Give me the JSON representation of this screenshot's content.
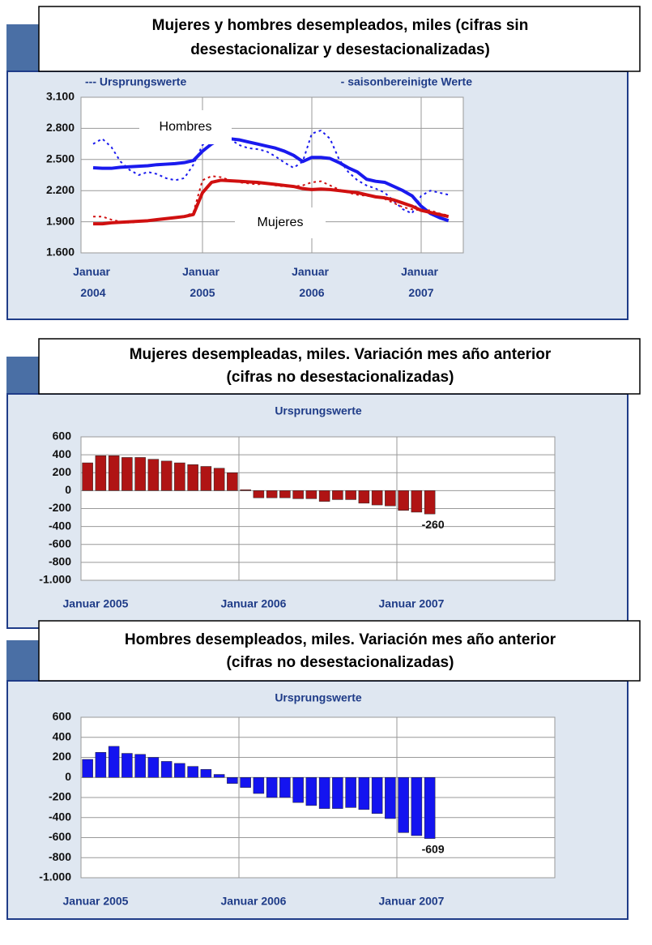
{
  "chart_data": [
    {
      "type": "line",
      "title": [
        "Mujeres y hombres desempleados, miles (cifras sin",
        "desestacionalizar y desestacionalizadas)"
      ],
      "legend": [
        "--- Ursprungswerte",
        "- saisonbereinigte Werte"
      ],
      "annotations": [
        "Hombres",
        "Mujeres"
      ],
      "categories": [
        "Januar 2004",
        null,
        null,
        null,
        null,
        null,
        null,
        null,
        null,
        null,
        null,
        null,
        "Januar 2005",
        null,
        null,
        null,
        null,
        null,
        null,
        null,
        null,
        null,
        null,
        null,
        "Januar 2006",
        null,
        null,
        null,
        null,
        null,
        null,
        null,
        null,
        null,
        null,
        null,
        "Januar 2007",
        null,
        null,
        null
      ],
      "series": [
        {
          "color": "#1a1aee",
          "style": "solid",
          "values": [
            2420,
            2415,
            2415,
            2425,
            2430,
            2435,
            2440,
            2450,
            2455,
            2460,
            2470,
            2490,
            2580,
            2650,
            2700,
            2700,
            2690,
            2670,
            2650,
            2630,
            2610,
            2580,
            2540,
            2480,
            2520,
            2520,
            2510,
            2470,
            2420,
            2380,
            2310,
            2290,
            2280,
            2240,
            2200,
            2150,
            2050,
            1980,
            1940,
            1910
          ]
        },
        {
          "color": "#1a1aee",
          "style": "dotted",
          "values": [
            2650,
            2700,
            2620,
            2480,
            2400,
            2350,
            2380,
            2360,
            2320,
            2300,
            2320,
            2450,
            2640,
            2700,
            2760,
            2700,
            2640,
            2610,
            2600,
            2580,
            2530,
            2470,
            2420,
            2480,
            2750,
            2780,
            2700,
            2500,
            2380,
            2300,
            2250,
            2220,
            2180,
            2100,
            2020,
            1980,
            2150,
            2200,
            2180,
            2160
          ]
        },
        {
          "color": "#d01010",
          "style": "solid",
          "values": [
            1880,
            1880,
            1890,
            1895,
            1900,
            1905,
            1910,
            1920,
            1930,
            1940,
            1950,
            1970,
            2180,
            2280,
            2300,
            2295,
            2290,
            2285,
            2280,
            2270,
            2260,
            2250,
            2240,
            2220,
            2210,
            2215,
            2210,
            2200,
            2190,
            2180,
            2160,
            2140,
            2130,
            2110,
            2080,
            2050,
            2010,
            1990,
            1970,
            1950
          ]
        },
        {
          "color": "#d01010",
          "style": "dotted",
          "values": [
            1950,
            1950,
            1920,
            1900,
            1890,
            1900,
            1910,
            1920,
            1930,
            1940,
            1950,
            1990,
            2300,
            2340,
            2330,
            2300,
            2280,
            2270,
            2260,
            2270,
            2250,
            2240,
            2240,
            2250,
            2280,
            2290,
            2250,
            2210,
            2180,
            2160,
            2150,
            2140,
            2120,
            2080,
            2040,
            2020,
            2010,
            2010,
            1980,
            1960
          ]
        }
      ],
      "ylim": [
        1600,
        3100
      ],
      "yticks": [
        {
          "value": 1600,
          "label": "1.600"
        },
        {
          "value": 1900,
          "label": "1.900"
        },
        {
          "value": 2200,
          "label": "2.200"
        },
        {
          "value": 2500,
          "label": "2.500"
        },
        {
          "value": 2800,
          "label": "2.800"
        },
        {
          "value": 3100,
          "label": "3.100"
        }
      ],
      "grid": true
    },
    {
      "type": "bar",
      "title": [
        "Mujeres desempleadas, miles. Variación mes año anterior",
        "(cifras no desestacionalizadas)"
      ],
      "subtitle": "Ursprungswerte",
      "color": "#b01414",
      "categories": [
        "Januar 2005",
        null,
        null,
        null,
        null,
        null,
        null,
        null,
        null,
        null,
        null,
        null,
        "Januar 2006",
        null,
        null,
        null,
        null,
        null,
        null,
        null,
        null,
        null,
        null,
        null,
        "Januar 2007",
        null,
        null,
        null,
        null,
        null,
        null,
        null,
        null,
        null,
        null,
        null
      ],
      "values": [
        310,
        390,
        390,
        370,
        370,
        350,
        330,
        310,
        290,
        270,
        250,
        200,
        10,
        -80,
        -80,
        -80,
        -90,
        -90,
        -120,
        -100,
        -100,
        -140,
        -160,
        -170,
        -220,
        -240,
        -260,
        null,
        null,
        null,
        null,
        null,
        null,
        null,
        null,
        null
      ],
      "value_labels": [
        null,
        null,
        null,
        null,
        null,
        null,
        null,
        null,
        null,
        null,
        null,
        null,
        null,
        null,
        null,
        null,
        null,
        null,
        null,
        null,
        null,
        null,
        null,
        null,
        null,
        null,
        "-260",
        null,
        null,
        null,
        null,
        null,
        null,
        null,
        null,
        null
      ],
      "ylim": [
        -1000,
        600
      ],
      "yticks": [
        {
          "value": -1000,
          "label": "-1.000"
        },
        -800,
        -600,
        -400,
        -200,
        0,
        200,
        400,
        600
      ],
      "grid": true
    },
    {
      "type": "bar",
      "title": [
        "Hombres desempleados, miles. Variación mes año anterior",
        "(cifras no desestacionalizadas)"
      ],
      "subtitle": "Ursprungswerte",
      "color": "#1414f0",
      "categories": [
        "Januar 2005",
        null,
        null,
        null,
        null,
        null,
        null,
        null,
        null,
        null,
        null,
        null,
        "Januar 2006",
        null,
        null,
        null,
        null,
        null,
        null,
        null,
        null,
        null,
        null,
        null,
        "Januar 2007",
        null,
        null,
        null,
        null,
        null,
        null,
        null,
        null,
        null,
        null,
        null
      ],
      "values": [
        180,
        250,
        310,
        240,
        230,
        200,
        160,
        140,
        110,
        80,
        30,
        -60,
        -100,
        -160,
        -200,
        -200,
        -250,
        -280,
        -310,
        -310,
        -300,
        -320,
        -360,
        -410,
        -550,
        -580,
        -609,
        null,
        null,
        null,
        null,
        null,
        null,
        null,
        null,
        null
      ],
      "value_labels": [
        null,
        null,
        null,
        null,
        null,
        null,
        null,
        null,
        null,
        null,
        null,
        null,
        null,
        null,
        null,
        null,
        null,
        null,
        null,
        null,
        null,
        null,
        null,
        null,
        null,
        null,
        "-609",
        null,
        null,
        null,
        null,
        null,
        null,
        null,
        null,
        null
      ],
      "ylim": [
        -1000,
        600
      ],
      "yticks": [
        {
          "value": -1000,
          "label": "-1.000"
        },
        -800,
        -600,
        -400,
        -200,
        0,
        200,
        400,
        600
      ],
      "grid": true
    }
  ]
}
